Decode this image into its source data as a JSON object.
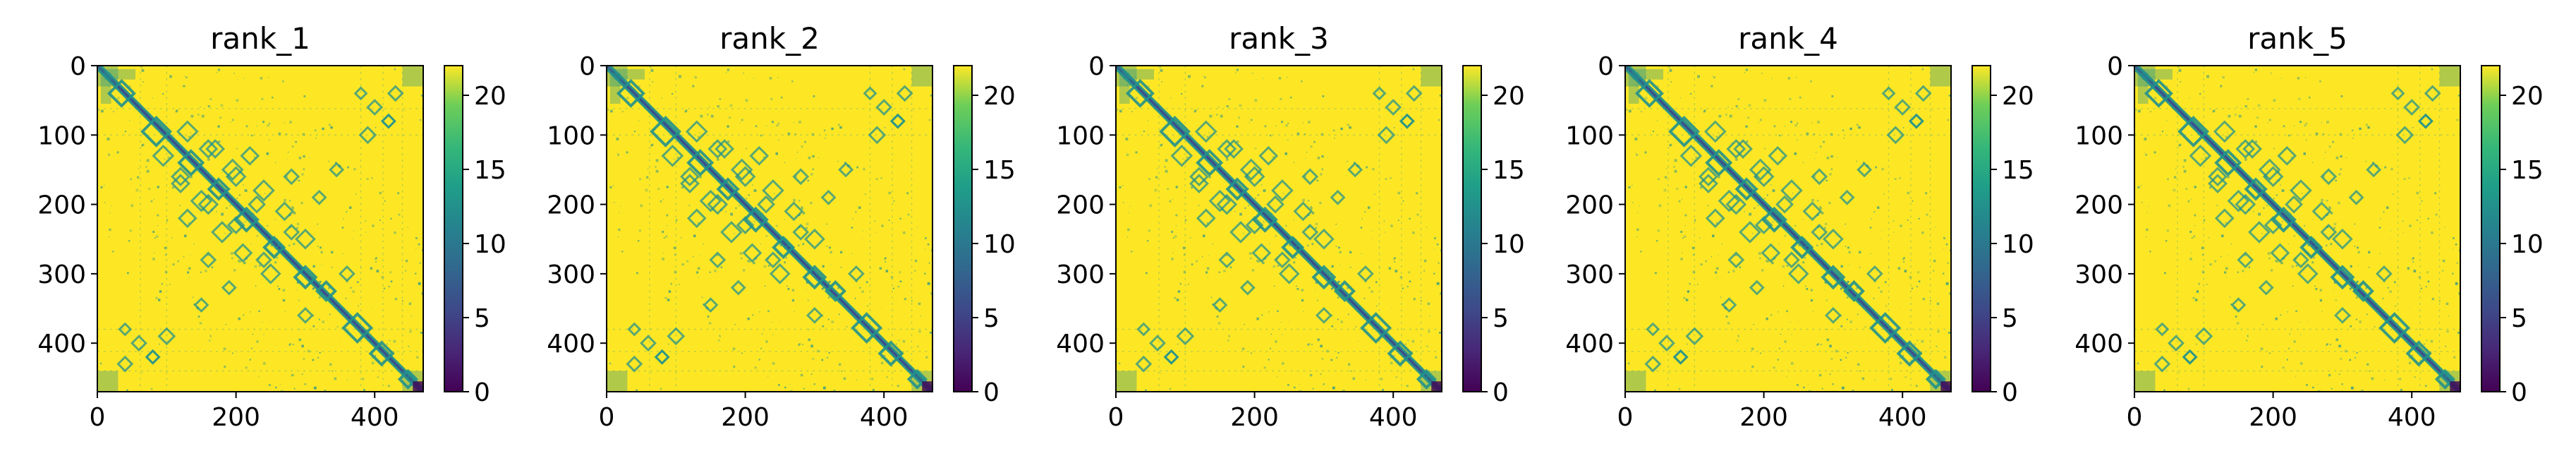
{
  "figure": {
    "panel_count": 5
  },
  "chart_data": [
    {
      "type": "heatmap",
      "title": "rank_1",
      "xlabel": "",
      "ylabel": "",
      "x_ticks": [
        0,
        200,
        400
      ],
      "y_ticks": [
        0,
        100,
        200,
        300,
        400
      ],
      "xlim": [
        0,
        470
      ],
      "ylim": [
        470,
        0
      ],
      "colorbar": {
        "ticks": [
          0,
          5,
          10,
          15,
          20
        ],
        "range": [
          0,
          22
        ],
        "colormap": "viridis"
      },
      "matrix_size": 470,
      "colors": {
        "low": "#440154",
        "mid": "#21918c",
        "high": "#fde725"
      },
      "description_values": "pairwise predicted aligned error matrix, mostly saturated near 22 with low-value diagonal and domain contact patterns"
    },
    {
      "type": "heatmap",
      "title": "rank_2",
      "xlabel": "",
      "ylabel": "",
      "x_ticks": [
        0,
        200,
        400
      ],
      "y_ticks": [
        0,
        100,
        200,
        300,
        400
      ],
      "xlim": [
        0,
        470
      ],
      "ylim": [
        470,
        0
      ],
      "colorbar": {
        "ticks": [
          0,
          5,
          10,
          15,
          20
        ],
        "range": [
          0,
          22
        ],
        "colormap": "viridis"
      },
      "matrix_size": 470,
      "colors": {
        "low": "#440154",
        "mid": "#21918c",
        "high": "#fde725"
      },
      "description_values": "pairwise predicted aligned error matrix, mostly saturated near 22 with low-value diagonal and domain contact patterns"
    },
    {
      "type": "heatmap",
      "title": "rank_3",
      "xlabel": "",
      "ylabel": "",
      "x_ticks": [
        0,
        200,
        400
      ],
      "y_ticks": [
        0,
        100,
        200,
        300,
        400
      ],
      "xlim": [
        0,
        470
      ],
      "ylim": [
        470,
        0
      ],
      "colorbar": {
        "ticks": [
          0,
          5,
          10,
          15,
          20
        ],
        "range": [
          0,
          22
        ],
        "colormap": "viridis"
      },
      "matrix_size": 470,
      "colors": {
        "low": "#440154",
        "mid": "#21918c",
        "high": "#fde725"
      },
      "description_values": "pairwise predicted aligned error matrix, mostly saturated near 22 with low-value diagonal and domain contact patterns"
    },
    {
      "type": "heatmap",
      "title": "rank_4",
      "xlabel": "",
      "ylabel": "",
      "x_ticks": [
        0,
        200,
        400
      ],
      "y_ticks": [
        0,
        100,
        200,
        300,
        400
      ],
      "xlim": [
        0,
        470
      ],
      "ylim": [
        470,
        0
      ],
      "colorbar": {
        "ticks": [
          0,
          5,
          10,
          15,
          20
        ],
        "range": [
          0,
          22
        ],
        "colormap": "viridis"
      },
      "matrix_size": 470,
      "colors": {
        "low": "#440154",
        "mid": "#21918c",
        "high": "#fde725"
      },
      "description_values": "pairwise predicted aligned error matrix, mostly saturated near 22 with low-value diagonal and domain contact patterns"
    },
    {
      "type": "heatmap",
      "title": "rank_5",
      "xlabel": "",
      "ylabel": "",
      "x_ticks": [
        0,
        200,
        400
      ],
      "y_ticks": [
        0,
        100,
        200,
        300,
        400
      ],
      "xlim": [
        0,
        470
      ],
      "ylim": [
        470,
        0
      ],
      "colorbar": {
        "ticks": [
          0,
          5,
          10,
          15,
          20
        ],
        "range": [
          0,
          22
        ],
        "colormap": "viridis"
      },
      "matrix_size": 470,
      "colors": {
        "low": "#440154",
        "mid": "#21918c",
        "high": "#fde725"
      },
      "description_values": "pairwise predicted aligned error matrix, mostly saturated near 22 with low-value diagonal and domain contact patterns"
    }
  ]
}
